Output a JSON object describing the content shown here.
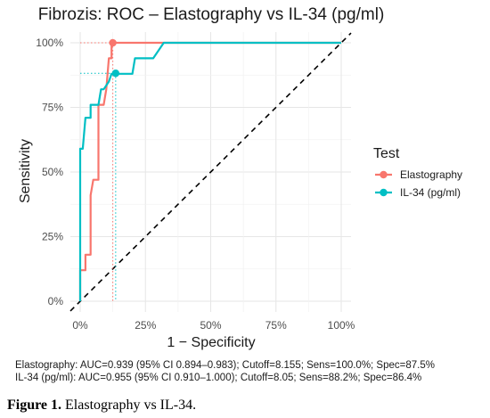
{
  "chart_data": {
    "type": "line",
    "title": "Fibrozis: ROC – Elastography vs IL-34 (pg/ml)",
    "xlabel": "1 − Specificity",
    "ylabel": "Sensitivity",
    "xlim": [
      0,
      1
    ],
    "ylim": [
      0,
      1
    ],
    "x_ticks": [
      "0%",
      "25%",
      "50%",
      "75%",
      "100%"
    ],
    "y_ticks": [
      "0%",
      "25%",
      "50%",
      "75%",
      "100%"
    ],
    "grid": true,
    "legend": {
      "title": "Test",
      "position": "right"
    },
    "diagonal_reference": true,
    "series": [
      {
        "name": "Elastography",
        "color": "#F8766D",
        "points": [
          [
            0,
            0
          ],
          [
            0,
            0.12
          ],
          [
            0.02,
            0.12
          ],
          [
            0.02,
            0.18
          ],
          [
            0.04,
            0.18
          ],
          [
            0.04,
            0.41
          ],
          [
            0.05,
            0.47
          ],
          [
            0.07,
            0.47
          ],
          [
            0.07,
            0.76
          ],
          [
            0.09,
            0.76
          ],
          [
            0.1,
            0.82
          ],
          [
            0.11,
            0.94
          ],
          [
            0.12,
            0.94
          ],
          [
            0.12,
            1.0
          ],
          [
            0.14,
            1.0
          ],
          [
            1,
            1
          ]
        ],
        "optimal_point": {
          "fpr": 0.125,
          "tpr": 1.0
        }
      },
      {
        "name": "IL-34 (pg/ml)",
        "color": "#00BFC4",
        "points": [
          [
            0,
            0
          ],
          [
            0,
            0.59
          ],
          [
            0.01,
            0.59
          ],
          [
            0.02,
            0.71
          ],
          [
            0.04,
            0.71
          ],
          [
            0.04,
            0.76
          ],
          [
            0.07,
            0.76
          ],
          [
            0.08,
            0.82
          ],
          [
            0.09,
            0.82
          ],
          [
            0.11,
            0.85
          ],
          [
            0.12,
            0.88
          ],
          [
            0.14,
            0.88
          ],
          [
            0.15,
            0.88
          ],
          [
            0.2,
            0.88
          ],
          [
            0.21,
            0.94
          ],
          [
            0.28,
            0.94
          ],
          [
            0.32,
            1.0
          ],
          [
            1,
            1
          ]
        ],
        "optimal_point": {
          "fpr": 0.136,
          "tpr": 0.882
        }
      }
    ]
  },
  "summary_lines": [
    "Elastography: AUC=0.939 (95% CI 0.894–0.983); Cutoff=8.155; Sens=100.0%; Spec=87.5%",
    "IL-34 (pg/ml): AUC=0.955 (95% CI 0.910–1.000); Cutoff=8.05; Sens=88.2%; Spec=86.4%"
  ],
  "caption": {
    "label": "Figure 1.",
    "text": " Elastography vs IL-34."
  }
}
